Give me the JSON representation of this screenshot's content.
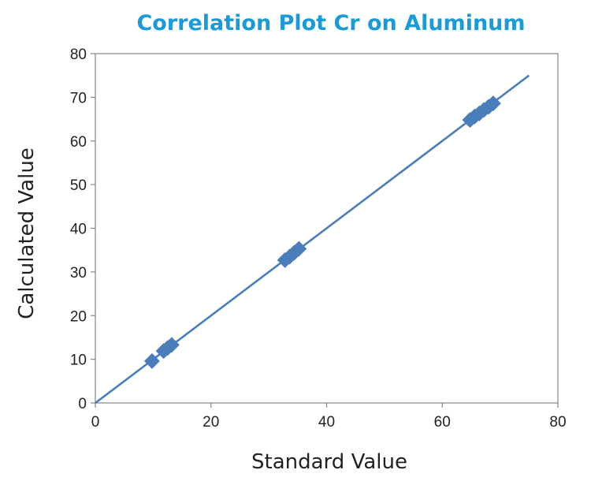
{
  "chart_data": {
    "type": "scatter",
    "title": "Correlation Plot Cr on Aluminum",
    "xlabel": "Standard Value",
    "ylabel": "Calculated Value",
    "xlim": [
      0,
      80
    ],
    "ylim": [
      0,
      80
    ],
    "xticks": [
      "0",
      "20",
      "40",
      "60",
      "80"
    ],
    "yticks": [
      "0",
      "10",
      "20",
      "30",
      "40",
      "50",
      "60",
      "70",
      "80"
    ],
    "grid": false,
    "legend": "none",
    "series": [
      {
        "points": [
          {
            "x": 9.8,
            "y": 9.6
          },
          {
            "x": 11.8,
            "y": 11.9
          },
          {
            "x": 12.5,
            "y": 12.6
          },
          {
            "x": 13.2,
            "y": 13.3
          },
          {
            "x": 32.8,
            "y": 32.7
          },
          {
            "x": 33.6,
            "y": 33.5
          },
          {
            "x": 34.4,
            "y": 34.4
          },
          {
            "x": 35.2,
            "y": 35.3
          },
          {
            "x": 64.8,
            "y": 64.8
          },
          {
            "x": 65.6,
            "y": 65.6
          },
          {
            "x": 66.4,
            "y": 66.3
          },
          {
            "x": 67.2,
            "y": 67.1
          },
          {
            "x": 68.0,
            "y": 67.8
          },
          {
            "x": 68.8,
            "y": 68.6
          }
        ]
      }
    ],
    "trendline": {
      "x": [
        0,
        75
      ],
      "y": [
        0,
        75
      ]
    },
    "colors": {
      "title": "#1a9ad6",
      "marker": "#4a7ebb",
      "line": "#4a7ebb",
      "axis": "#868686"
    }
  }
}
